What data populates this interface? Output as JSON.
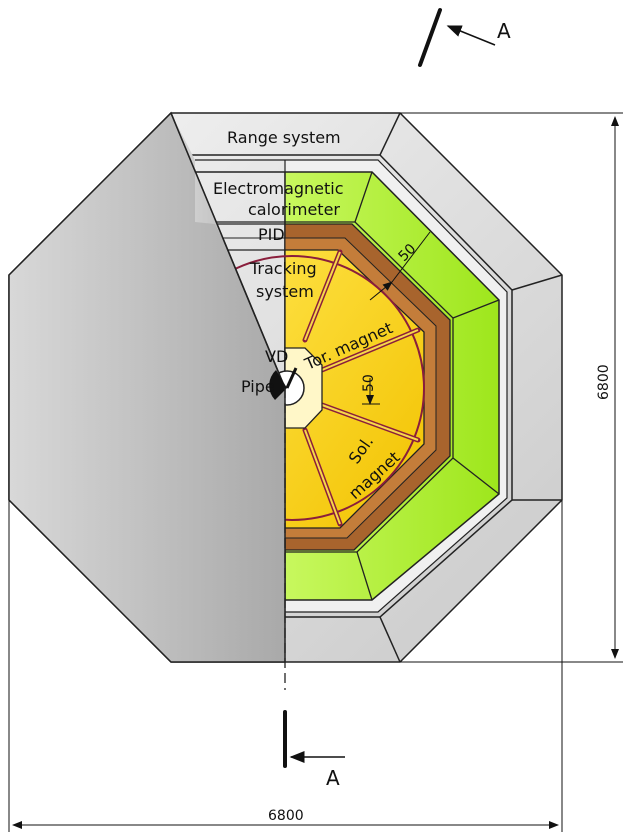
{
  "labels": {
    "range_system": "Range system",
    "ecal_line1": "Electromagnetic",
    "ecal_line2": "calorimeter",
    "pid": "PID",
    "tracking_line1": "Tracking",
    "tracking_line2": "system",
    "vd": "VD",
    "pipe": "Pipe",
    "tor_magnet": "Tor. magnet",
    "sol_line1": "Sol.",
    "sol_line2": "magnet"
  },
  "dimensions": {
    "width": "6800",
    "height": "6800",
    "gap_upper": "50",
    "gap_lower": "50"
  },
  "section_marks": {
    "top": "A",
    "bottom": "A"
  },
  "colors": {
    "range_outer": "#b7b7b7",
    "range_inner": "#e6e6e6",
    "calorimeter": "#b8f03a",
    "pid": "#a8642d",
    "tracking": "#f5d20a",
    "magnet_frame": "#8a1e3c",
    "cut_away": "#c4c4c4"
  }
}
